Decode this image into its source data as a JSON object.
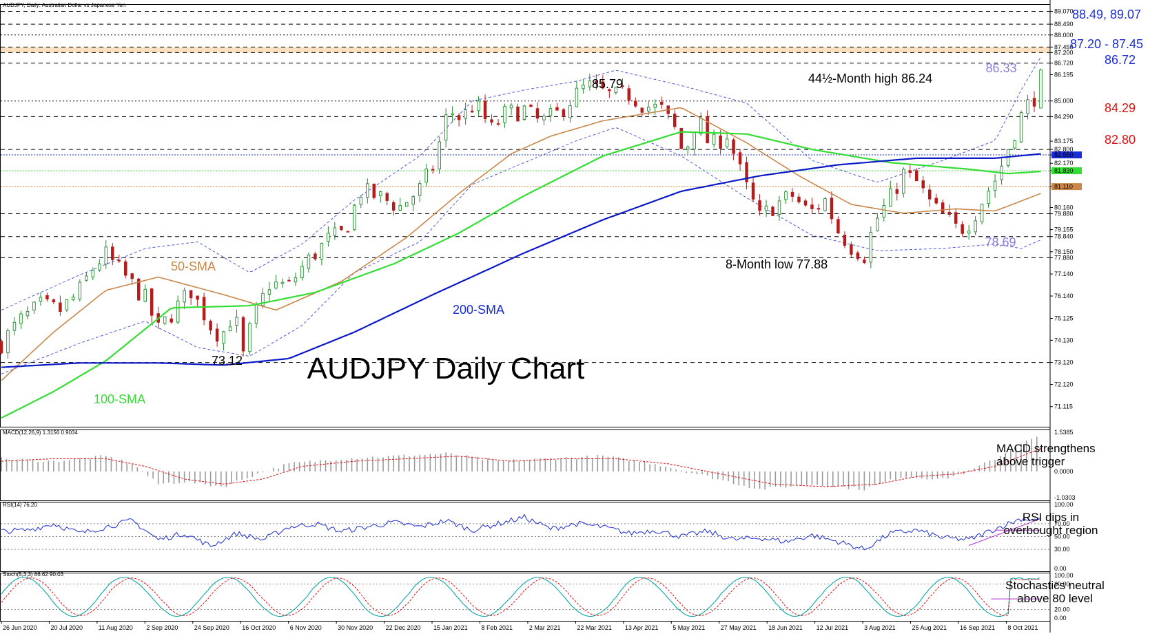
{
  "header": {
    "symbol_line": "AUDJPY, Daily: Australian Dollar vs Japanese Yen"
  },
  "colors": {
    "bull": "#1e8a2a",
    "bear": "#b71c1c",
    "sma50": "#c9874a",
    "sma100": "#33dd33",
    "sma200": "#0a19c8",
    "bands": "#4f5bd8",
    "macd_hist": "#9a9a9a",
    "macd_signal": "#e01010",
    "rsi": "#1a2bd8",
    "stoch_main": "#0aa6a6",
    "stoch_signal": "#e01010",
    "trend": "#b030d0",
    "res_red": "#e01010",
    "res_blue": "#1a2bd8",
    "band_label": "#8a7dde",
    "zone": "#f6c78e"
  },
  "chart_data": [
    {
      "type": "candlestick",
      "title": "AUDJPY Daily Chart",
      "ylim": [
        70.2,
        89.4
      ],
      "price_axis_ticks": [
        "89.070",
        "88.490",
        "88.000",
        "87.450",
        "87.200",
        "86.720",
        "86.195",
        "85.000",
        "84.290",
        "83.175",
        "82.800",
        "82.550",
        "82.170",
        "81.830",
        "81.110",
        "80.160",
        "79.880",
        "79.155",
        "78.840",
        "78.150",
        "77.880",
        "77.140",
        "76.140",
        "75.125",
        "74.130",
        "73.120",
        "72.120",
        "71.115"
      ],
      "highlighted_axis_ticks": [
        {
          "value": "82.550",
          "color": "#1a2bd8",
          "text_color": "#ffffff"
        },
        {
          "value": "81.830",
          "color": "#33dd33",
          "text_color": "#ffffff"
        },
        {
          "value": "81.110",
          "color": "#c9874a",
          "text_color": "#ffffff"
        }
      ],
      "x_axis_ticks": [
        "26 Jun 2020",
        "20 Jul 2020",
        "11 Aug 2020",
        "2 Sep 2020",
        "24 Sep 2020",
        "16 Oct 2020",
        "6 Nov 2020",
        "30 Nov 2020",
        "22 Dec 2020",
        "15 Jan 2021",
        "8 Feb 2021",
        "2 Mar 2021",
        "22 Mar 2021",
        "13 Apr 2021",
        "5 May 2021",
        "27 May 2021",
        "18 Jun 2021",
        "12 Jul 2021",
        "3 Aug 2021",
        "25 Aug 2021",
        "16 Sep 2021",
        "8 Oct 2021"
      ],
      "price_path": [
        [
          0,
          74.0
        ],
        [
          14,
          75.0
        ],
        [
          30,
          75.7
        ],
        [
          45,
          75.5
        ],
        [
          58,
          76.2
        ],
        [
          72,
          77.6
        ],
        [
          80,
          78.0
        ],
        [
          95,
          77.0
        ],
        [
          110,
          76.0
        ],
        [
          120,
          74.6
        ],
        [
          135,
          75.7
        ],
        [
          145,
          76.4
        ],
        [
          160,
          74.8
        ],
        [
          168,
          74.3
        ],
        [
          178,
          75.4
        ],
        [
          185,
          73.4
        ],
        [
          192,
          75.0
        ],
        [
          205,
          76.7
        ],
        [
          220,
          76.6
        ],
        [
          232,
          77.6
        ],
        [
          250,
          78.7
        ],
        [
          262,
          79.0
        ],
        [
          275,
          80.9
        ],
        [
          290,
          80.6
        ],
        [
          305,
          80.2
        ],
        [
          320,
          81.0
        ],
        [
          330,
          82.0
        ],
        [
          342,
          84.6
        ],
        [
          352,
          84.2
        ],
        [
          362,
          84.9
        ],
        [
          375,
          83.7
        ],
        [
          385,
          84.4
        ],
        [
          400,
          84.6
        ],
        [
          412,
          84.0
        ],
        [
          425,
          84.4
        ],
        [
          438,
          85.2
        ],
        [
          448,
          85.7
        ],
        [
          455,
          85.5
        ],
        [
          468,
          85.2
        ],
        [
          480,
          85.3
        ],
        [
          492,
          84.8
        ],
        [
          505,
          84.6
        ],
        [
          515,
          83.7
        ],
        [
          522,
          82.5
        ],
        [
          532,
          84.3
        ],
        [
          542,
          82.9
        ],
        [
          555,
          83.5
        ],
        [
          568,
          81.3
        ],
        [
          580,
          79.7
        ],
        [
          592,
          80.3
        ],
        [
          605,
          80.7
        ],
        [
          618,
          79.9
        ],
        [
          630,
          80.5
        ],
        [
          640,
          79.1
        ],
        [
          650,
          78.4
        ],
        [
          660,
          78.0
        ],
        [
          668,
          79.5
        ],
        [
          680,
          80.6
        ],
        [
          690,
          81.7
        ],
        [
          700,
          81.3
        ],
        [
          712,
          80.2
        ],
        [
          722,
          79.7
        ],
        [
          732,
          79.1
        ],
        [
          742,
          79.6
        ],
        [
          752,
          80.7
        ],
        [
          762,
          81.6
        ],
        [
          772,
          83.2
        ],
        [
          782,
          84.6
        ],
        [
          790,
          85.2
        ],
        [
          795,
          86.0
        ]
      ],
      "indicators": {
        "sma50": [
          [
            0,
            72.3
          ],
          [
            40,
            74.5
          ],
          [
            80,
            76.4
          ],
          [
            120,
            77.0
          ],
          [
            170,
            76.2
          ],
          [
            210,
            75.5
          ],
          [
            260,
            76.8
          ],
          [
            310,
            78.8
          ],
          [
            350,
            80.8
          ],
          [
            390,
            82.6
          ],
          [
            420,
            83.4
          ],
          [
            460,
            84.1
          ],
          [
            520,
            84.7
          ],
          [
            570,
            83.1
          ],
          [
            610,
            81.6
          ],
          [
            650,
            80.3
          ],
          [
            690,
            79.9
          ],
          [
            730,
            80.1
          ],
          [
            760,
            80.0
          ],
          [
            795,
            80.8
          ]
        ],
        "sma100": [
          [
            0,
            70.6
          ],
          [
            40,
            71.8
          ],
          [
            80,
            73.2
          ],
          [
            130,
            75.6
          ],
          [
            190,
            75.7
          ],
          [
            240,
            76.3
          ],
          [
            300,
            77.6
          ],
          [
            350,
            79.0
          ],
          [
            400,
            80.7
          ],
          [
            460,
            82.5
          ],
          [
            520,
            83.6
          ],
          [
            570,
            83.5
          ],
          [
            620,
            82.8
          ],
          [
            680,
            82.2
          ],
          [
            740,
            81.9
          ],
          [
            770,
            81.7
          ],
          [
            795,
            81.8
          ]
        ],
        "sma200": [
          [
            0,
            72.9
          ],
          [
            60,
            73.1
          ],
          [
            120,
            73.1
          ],
          [
            170,
            73.0
          ],
          [
            220,
            73.3
          ],
          [
            270,
            74.5
          ],
          [
            330,
            76.2
          ],
          [
            400,
            78.1
          ],
          [
            460,
            79.6
          ],
          [
            520,
            80.9
          ],
          [
            580,
            81.6
          ],
          [
            640,
            82.1
          ],
          [
            700,
            82.4
          ],
          [
            760,
            82.4
          ],
          [
            795,
            82.6
          ]
        ],
        "bands_upper": [
          [
            0,
            75.5
          ],
          [
            60,
            77.1
          ],
          [
            110,
            78.3
          ],
          [
            150,
            78.6
          ],
          [
            190,
            77.2
          ],
          [
            230,
            78.5
          ],
          [
            270,
            80.5
          ],
          [
            320,
            82.5
          ],
          [
            360,
            85.0
          ],
          [
            400,
            85.5
          ],
          [
            440,
            85.9
          ],
          [
            470,
            86.4
          ],
          [
            520,
            85.7
          ],
          [
            570,
            84.9
          ],
          [
            620,
            82.3
          ],
          [
            670,
            81.3
          ],
          [
            720,
            82.3
          ],
          [
            760,
            83.2
          ],
          [
            780,
            85.5
          ],
          [
            795,
            87.0
          ]
        ],
        "bands_lower": [
          [
            0,
            72.6
          ],
          [
            60,
            74.0
          ],
          [
            110,
            75.0
          ],
          [
            150,
            73.8
          ],
          [
            190,
            73.4
          ],
          [
            230,
            74.8
          ],
          [
            270,
            77.2
          ],
          [
            320,
            78.6
          ],
          [
            360,
            81.2
          ],
          [
            400,
            82.2
          ],
          [
            440,
            83.2
          ],
          [
            470,
            83.8
          ],
          [
            520,
            82.5
          ],
          [
            570,
            80.6
          ],
          [
            620,
            78.9
          ],
          [
            670,
            78.2
          ],
          [
            720,
            78.3
          ],
          [
            760,
            78.5
          ],
          [
            780,
            78.3
          ],
          [
            795,
            78.69
          ]
        ]
      },
      "levels": [
        {
          "value": 89.07,
          "color": "#000000",
          "dash": "6,5",
          "label": ""
        },
        {
          "value": 88.49,
          "color": "#000000",
          "dash": "6,5",
          "label": ""
        },
        {
          "value": 88.0,
          "color": "#000000",
          "dash": "2,3",
          "label": ""
        },
        {
          "value": 87.45,
          "color": "#000000",
          "dash": "6,5",
          "label": ""
        },
        {
          "value": 87.2,
          "color": "#000000",
          "dash": "6,5",
          "label": ""
        },
        {
          "value": 86.72,
          "color": "#000000",
          "dash": "6,5",
          "label": ""
        },
        {
          "value": 85.0,
          "color": "#000000",
          "dash": "2,3",
          "label": ""
        },
        {
          "value": 84.29,
          "color": "#000000",
          "dash": "6,5",
          "label": ""
        },
        {
          "value": 82.8,
          "color": "#000000",
          "dash": "6,5",
          "label": ""
        },
        {
          "value": 82.55,
          "color": "#1a2bd8",
          "dash": "2,2",
          "label": ""
        },
        {
          "value": 81.83,
          "color": "#33dd33",
          "dash": "2,2",
          "label": ""
        },
        {
          "value": 81.11,
          "color": "#e07020",
          "dash": "2,2",
          "label": ""
        },
        {
          "value": 79.88,
          "color": "#000000",
          "dash": "6,5",
          "label": ""
        },
        {
          "value": 78.84,
          "color": "#000000",
          "dash": "6,5",
          "label": ""
        },
        {
          "value": 77.88,
          "color": "#000000",
          "dash": "6,5",
          "label": ""
        },
        {
          "value": 73.12,
          "color": "#000000",
          "dash": "6,5",
          "label": ""
        }
      ],
      "zone": [
        87.2,
        87.45
      ],
      "annotations": {
        "level_8849": "88.49, 89.07",
        "level_8720": "87.20 - 87.45",
        "level_8672": "86.72",
        "level_8633": "86.33",
        "level_8429": "84.29",
        "level_8280": "82.80",
        "level_7869": "78.69",
        "high_label": "44½-Month high 86.24",
        "peak_label": "85.79",
        "low_label": "8-Month low 77.88",
        "low2_label": "73.12",
        "sma50_label": "50-SMA",
        "sma100_label": "100-SMA",
        "sma200_label": "200-SMA"
      }
    },
    {
      "type": "bar",
      "title": "MACD(12,26,9) 1.3156 0.9034",
      "ylim": [
        -1.0303,
        1.5385
      ],
      "axis_ticks": [
        "1.5385",
        "0.0000",
        "-1.0303"
      ],
      "histogram": [
        [
          0,
          0.5
        ],
        [
          40,
          0.4
        ],
        [
          80,
          0.6
        ],
        [
          100,
          0.3
        ],
        [
          120,
          -0.5
        ],
        [
          140,
          -0.4
        ],
        [
          170,
          -0.6
        ],
        [
          190,
          -0.2
        ],
        [
          220,
          0.3
        ],
        [
          260,
          0.5
        ],
        [
          300,
          0.6
        ],
        [
          340,
          0.7
        ],
        [
          380,
          0.4
        ],
        [
          420,
          0.5
        ],
        [
          460,
          0.6
        ],
        [
          500,
          0.3
        ],
        [
          540,
          -0.2
        ],
        [
          580,
          -0.7
        ],
        [
          620,
          -0.5
        ],
        [
          660,
          -0.7
        ],
        [
          690,
          -0.2
        ],
        [
          720,
          -0.3
        ],
        [
          740,
          0.0
        ],
        [
          760,
          0.5
        ],
        [
          780,
          1.1
        ],
        [
          795,
          1.4
        ]
      ],
      "signal": [
        [
          0,
          0.4
        ],
        [
          40,
          0.5
        ],
        [
          80,
          0.5
        ],
        [
          110,
          0.2
        ],
        [
          140,
          -0.3
        ],
        [
          170,
          -0.5
        ],
        [
          200,
          -0.3
        ],
        [
          230,
          0.2
        ],
        [
          270,
          0.4
        ],
        [
          310,
          0.5
        ],
        [
          350,
          0.6
        ],
        [
          390,
          0.4
        ],
        [
          430,
          0.5
        ],
        [
          470,
          0.5
        ],
        [
          510,
          0.3
        ],
        [
          550,
          -0.1
        ],
        [
          590,
          -0.5
        ],
        [
          630,
          -0.6
        ],
        [
          670,
          -0.5
        ],
        [
          700,
          -0.2
        ],
        [
          730,
          -0.1
        ],
        [
          760,
          0.2
        ],
        [
          780,
          0.6
        ],
        [
          795,
          0.9
        ]
      ],
      "note": "MACD strengthens\nabove trigger"
    },
    {
      "type": "line",
      "title": "RSI(14) 76.20",
      "ylim": [
        0,
        100
      ],
      "axis_ticks": [
        "100.00",
        "70.00",
        "50.00",
        "30.00",
        "0.00"
      ],
      "levels": [
        70,
        50,
        30
      ],
      "series": [
        [
          0,
          58
        ],
        [
          20,
          60
        ],
        [
          40,
          70
        ],
        [
          60,
          55
        ],
        [
          80,
          65
        ],
        [
          100,
          75
        ],
        [
          120,
          45
        ],
        [
          140,
          55
        ],
        [
          160,
          35
        ],
        [
          180,
          55
        ],
        [
          200,
          45
        ],
        [
          220,
          65
        ],
        [
          240,
          70
        ],
        [
          260,
          58
        ],
        [
          280,
          65
        ],
        [
          300,
          72
        ],
        [
          320,
          65
        ],
        [
          340,
          75
        ],
        [
          360,
          60
        ],
        [
          380,
          70
        ],
        [
          400,
          80
        ],
        [
          420,
          62
        ],
        [
          440,
          70
        ],
        [
          460,
          65
        ],
        [
          480,
          55
        ],
        [
          500,
          60
        ],
        [
          520,
          50
        ],
        [
          540,
          58
        ],
        [
          560,
          45
        ],
        [
          580,
          48
        ],
        [
          600,
          42
        ],
        [
          620,
          52
        ],
        [
          640,
          42
        ],
        [
          660,
          30
        ],
        [
          680,
          55
        ],
        [
          700,
          60
        ],
        [
          720,
          48
        ],
        [
          740,
          45
        ],
        [
          760,
          62
        ],
        [
          780,
          78
        ],
        [
          795,
          76
        ]
      ],
      "trendline": [
        [
          740,
          36
        ],
        [
          795,
          78
        ]
      ],
      "horizontal_mark": [
        [
          760,
          60
        ],
        [
          795,
          60
        ]
      ],
      "note": "RSI dips in\noverbought region"
    },
    {
      "type": "line",
      "title": "Stoch(5,3,3) 86.62 90.03",
      "ylim": [
        0,
        100
      ],
      "axis_ticks": [
        "100.00",
        "80.00",
        "20.00",
        "0.00"
      ],
      "levels": [
        80,
        20
      ],
      "horizontal_mark": [
        [
          757,
          45
        ],
        [
          795,
          45
        ]
      ],
      "note": "Stochastics neutral\nabove 80 level"
    }
  ]
}
